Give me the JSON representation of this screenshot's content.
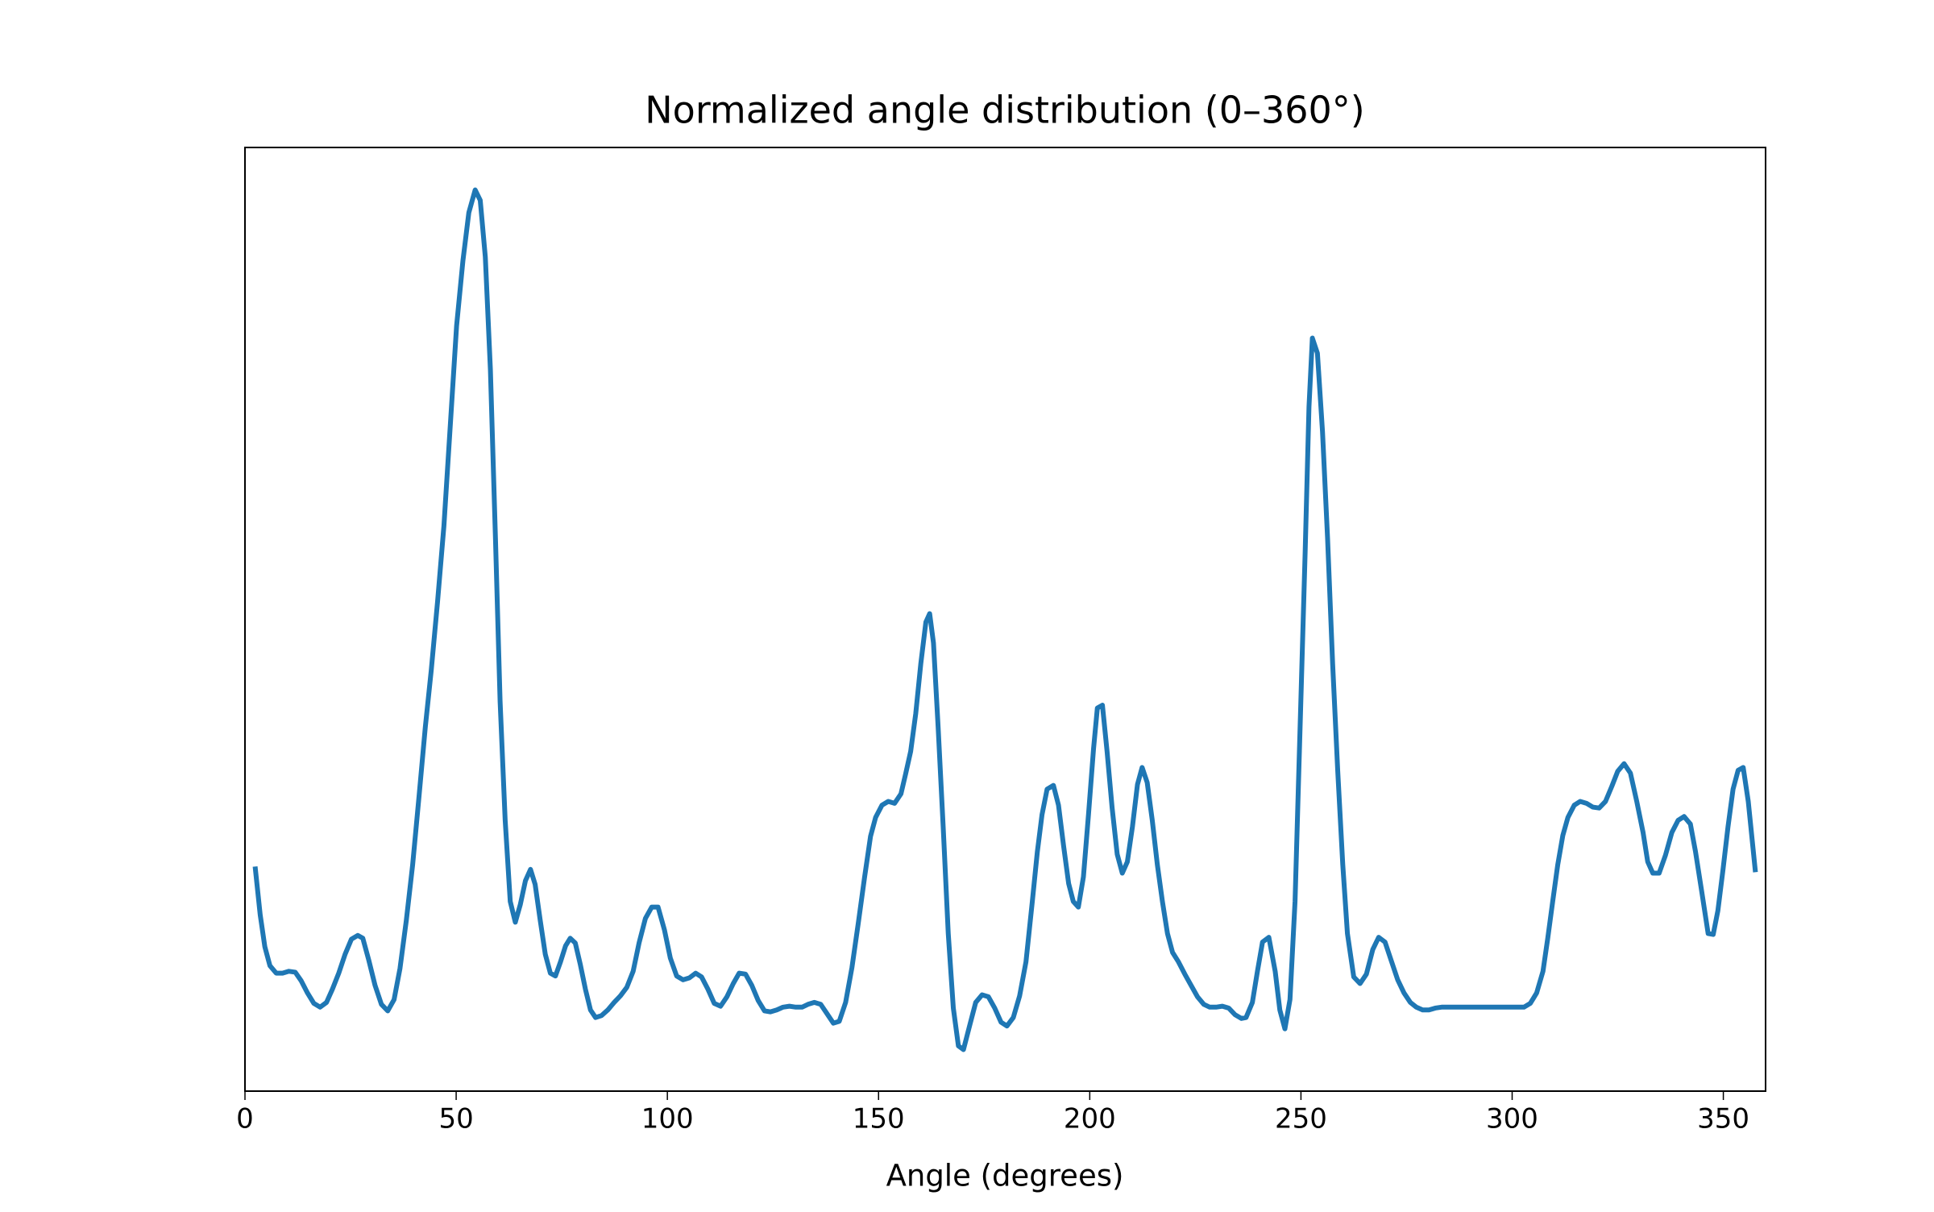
{
  "chart_data": {
    "type": "line",
    "title": "Normalized angle distribution (0–360°)",
    "x_label": "Angle (degrees)",
    "color": "#1f77b4",
    "xlim": [
      0,
      360
    ],
    "xticks": [
      0,
      50,
      100,
      150,
      200,
      250,
      300,
      350
    ],
    "ylim": [
      0,
      1
    ],
    "x": [
      2.4,
      3.6,
      4.7,
      5.9,
      7.4,
      8.9,
      10.4,
      11.9,
      13.3,
      14.8,
      16.3,
      17.8,
      19.3,
      20.7,
      22.2,
      23.7,
      25.2,
      26.7,
      27.9,
      29.3,
      30.8,
      32.3,
      33.8,
      35.3,
      36.7,
      38.2,
      39.7,
      41.2,
      42.7,
      44.1,
      45.6,
      47.1,
      48.6,
      50.1,
      51.6,
      53.0,
      54.5,
      55.7,
      56.9,
      58.1,
      59.3,
      60.4,
      61.6,
      62.8,
      64.0,
      65.2,
      66.4,
      67.6,
      68.7,
      69.9,
      71.1,
      72.3,
      73.5,
      74.7,
      75.9,
      77.0,
      78.2,
      79.4,
      80.6,
      81.8,
      83.0,
      84.4,
      85.9,
      87.4,
      88.9,
      90.4,
      91.9,
      93.3,
      94.8,
      96.3,
      97.8,
      99.3,
      100.7,
      102.2,
      103.7,
      105.2,
      106.7,
      108.1,
      109.6,
      111.1,
      112.6,
      114.1,
      115.6,
      117.0,
      118.5,
      120.0,
      121.5,
      123.0,
      124.4,
      125.9,
      127.4,
      128.9,
      130.4,
      131.9,
      133.3,
      134.8,
      136.3,
      137.8,
      139.3,
      140.7,
      142.2,
      143.7,
      145.2,
      146.7,
      148.1,
      149.3,
      150.8,
      152.3,
      153.8,
      155.3,
      156.4,
      157.6,
      158.8,
      160.0,
      161.2,
      162.1,
      163.0,
      164.1,
      165.3,
      166.5,
      167.7,
      168.9,
      170.1,
      171.6,
      173.0,
      174.5,
      176.0,
      177.5,
      179.0,
      180.4,
      181.9,
      183.4,
      184.9,
      186.4,
      187.6,
      188.7,
      189.9,
      191.4,
      192.6,
      193.8,
      195.0,
      196.1,
      197.3,
      198.5,
      199.7,
      200.9,
      201.8,
      203.0,
      204.1,
      205.3,
      206.5,
      207.7,
      208.9,
      210.1,
      211.3,
      212.4,
      213.6,
      214.8,
      216.0,
      217.2,
      218.4,
      219.6,
      221.0,
      222.5,
      224.0,
      225.5,
      227.0,
      228.4,
      229.9,
      231.4,
      232.9,
      234.4,
      235.9,
      237.0,
      238.5,
      239.7,
      240.9,
      242.4,
      243.9,
      245.0,
      246.2,
      247.4,
      248.6,
      249.8,
      251.0,
      251.9,
      252.7,
      253.9,
      255.1,
      256.3,
      257.5,
      258.7,
      259.9,
      261.0,
      262.5,
      264.0,
      265.5,
      267.0,
      268.4,
      269.9,
      271.4,
      272.9,
      274.4,
      275.9,
      277.3,
      278.8,
      280.3,
      281.8,
      283.3,
      285.6,
      288.6,
      291.6,
      294.5,
      297.5,
      300.4,
      302.8,
      304.3,
      305.8,
      307.3,
      308.4,
      309.6,
      310.8,
      312.0,
      313.2,
      314.7,
      316.1,
      317.6,
      319.1,
      320.6,
      322.1,
      323.6,
      325.0,
      326.5,
      328.0,
      329.5,
      331.0,
      332.1,
      333.3,
      334.8,
      336.3,
      337.8,
      339.3,
      340.7,
      342.2,
      343.4,
      344.9,
      346.4,
      347.6,
      348.7,
      349.9,
      351.1,
      352.3,
      353.5,
      354.7,
      355.9,
      357.6
    ],
    "values": [
      0.238,
      0.187,
      0.153,
      0.133,
      0.125,
      0.125,
      0.127,
      0.126,
      0.117,
      0.104,
      0.093,
      0.089,
      0.094,
      0.108,
      0.125,
      0.145,
      0.161,
      0.165,
      0.162,
      0.139,
      0.112,
      0.092,
      0.085,
      0.097,
      0.13,
      0.181,
      0.24,
      0.312,
      0.386,
      0.446,
      0.519,
      0.599,
      0.705,
      0.811,
      0.88,
      0.931,
      0.955,
      0.944,
      0.884,
      0.765,
      0.586,
      0.413,
      0.287,
      0.201,
      0.179,
      0.198,
      0.223,
      0.235,
      0.219,
      0.181,
      0.145,
      0.125,
      0.122,
      0.137,
      0.154,
      0.162,
      0.157,
      0.134,
      0.108,
      0.086,
      0.078,
      0.08,
      0.086,
      0.094,
      0.101,
      0.11,
      0.127,
      0.157,
      0.183,
      0.195,
      0.195,
      0.171,
      0.141,
      0.122,
      0.118,
      0.12,
      0.125,
      0.121,
      0.108,
      0.093,
      0.09,
      0.1,
      0.114,
      0.125,
      0.124,
      0.112,
      0.096,
      0.085,
      0.084,
      0.086,
      0.089,
      0.09,
      0.089,
      0.089,
      0.092,
      0.094,
      0.092,
      0.082,
      0.072,
      0.074,
      0.094,
      0.131,
      0.178,
      0.227,
      0.27,
      0.29,
      0.303,
      0.307,
      0.305,
      0.315,
      0.336,
      0.36,
      0.4,
      0.453,
      0.497,
      0.506,
      0.475,
      0.386,
      0.28,
      0.167,
      0.088,
      0.048,
      0.044,
      0.07,
      0.094,
      0.102,
      0.1,
      0.088,
      0.073,
      0.069,
      0.078,
      0.101,
      0.137,
      0.201,
      0.254,
      0.293,
      0.32,
      0.324,
      0.303,
      0.26,
      0.22,
      0.201,
      0.195,
      0.227,
      0.293,
      0.363,
      0.406,
      0.409,
      0.36,
      0.3,
      0.251,
      0.231,
      0.243,
      0.28,
      0.325,
      0.343,
      0.327,
      0.287,
      0.24,
      0.201,
      0.167,
      0.147,
      0.137,
      0.124,
      0.112,
      0.1,
      0.092,
      0.089,
      0.089,
      0.09,
      0.088,
      0.081,
      0.077,
      0.078,
      0.094,
      0.127,
      0.158,
      0.163,
      0.127,
      0.086,
      0.066,
      0.097,
      0.201,
      0.386,
      0.572,
      0.725,
      0.798,
      0.782,
      0.699,
      0.586,
      0.453,
      0.34,
      0.24,
      0.167,
      0.121,
      0.114,
      0.124,
      0.15,
      0.163,
      0.158,
      0.138,
      0.118,
      0.104,
      0.094,
      0.089,
      0.086,
      0.086,
      0.088,
      0.089,
      0.089,
      0.089,
      0.089,
      0.089,
      0.089,
      0.089,
      0.089,
      0.093,
      0.104,
      0.127,
      0.161,
      0.201,
      0.24,
      0.271,
      0.29,
      0.303,
      0.307,
      0.305,
      0.301,
      0.3,
      0.307,
      0.323,
      0.339,
      0.347,
      0.337,
      0.307,
      0.274,
      0.243,
      0.231,
      0.231,
      0.25,
      0.274,
      0.287,
      0.291,
      0.283,
      0.254,
      0.211,
      0.167,
      0.166,
      0.191,
      0.234,
      0.28,
      0.32,
      0.34,
      0.343,
      0.307,
      0.232
    ]
  }
}
